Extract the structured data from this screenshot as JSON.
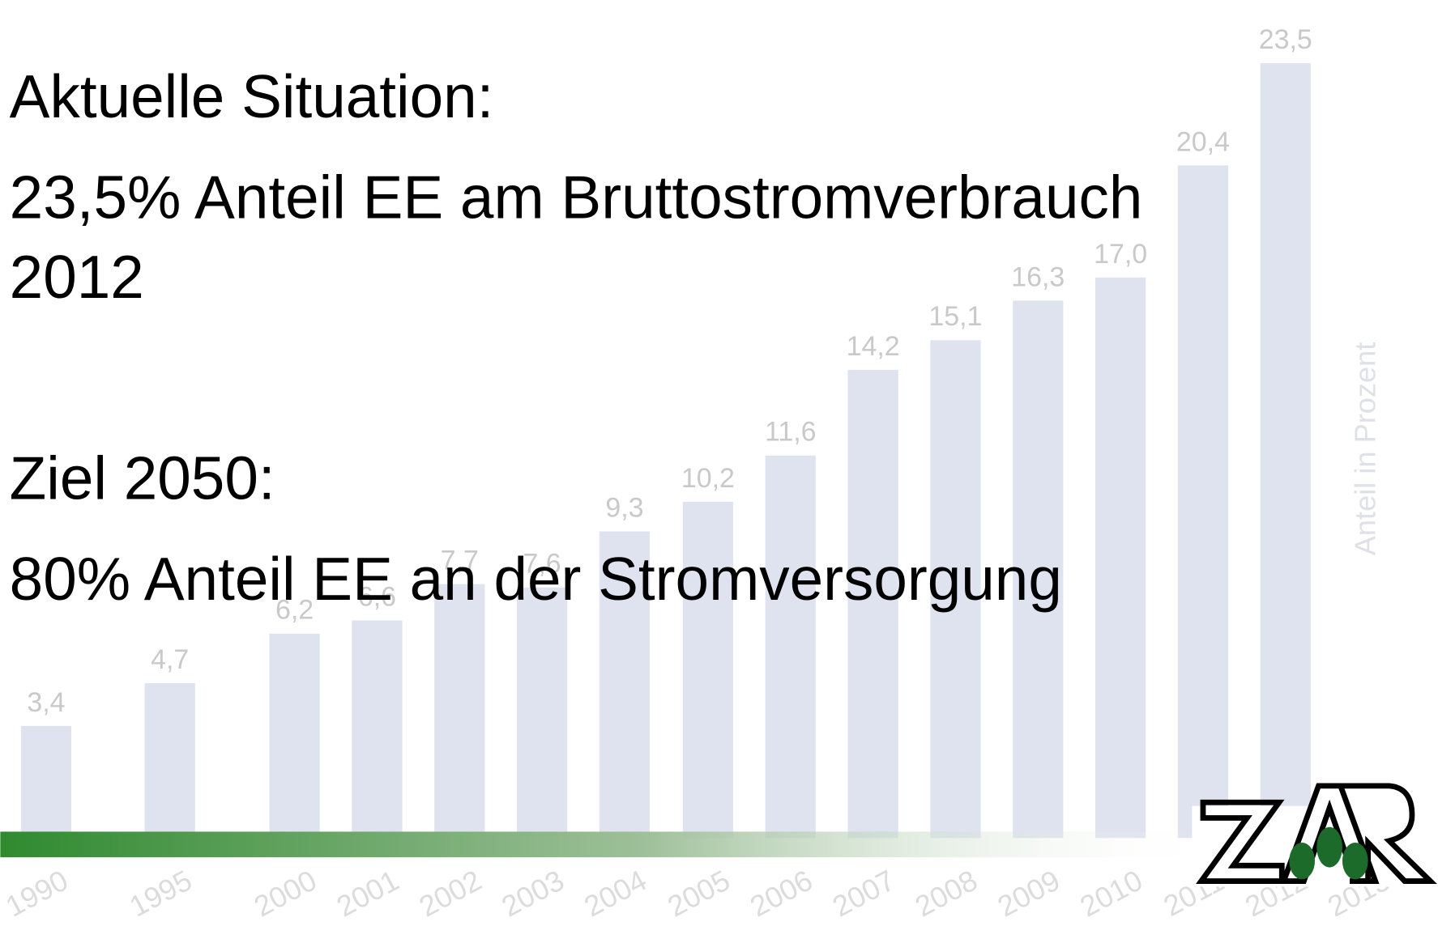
{
  "chart_data": {
    "type": "bar",
    "categories": [
      "1990",
      "1995",
      "2000",
      "2001",
      "2002",
      "2003",
      "2004",
      "2005",
      "2006",
      "2007",
      "2008",
      "2009",
      "2010",
      "2011",
      "2012",
      "2013"
    ],
    "values": [
      3.4,
      4.7,
      6.2,
      6.6,
      7.7,
      7.6,
      9.3,
      10.2,
      11.6,
      14.2,
      15.1,
      16.3,
      17.0,
      20.4,
      23.5,
      null
    ],
    "value_labels": [
      "3,4",
      "4,7",
      "6,2",
      "6,6",
      "7,7",
      "7,6",
      "9,3",
      "10,2",
      "11,6",
      "14,2",
      "15,1",
      "16,3",
      "17,0",
      "20,4",
      "23,5",
      null
    ],
    "color": "#dfe3f0",
    "y_label": "Anteil in Prozent",
    "ylim": [
      0,
      25
    ]
  },
  "slide": {
    "lines": [
      "Aktuelle Situation:",
      "23,5% Anteil EE am Bruttostromverbrauch",
      "2012",
      "Ziel 2050:",
      "80% Anteil EE an der Stromversorgung"
    ]
  }
}
